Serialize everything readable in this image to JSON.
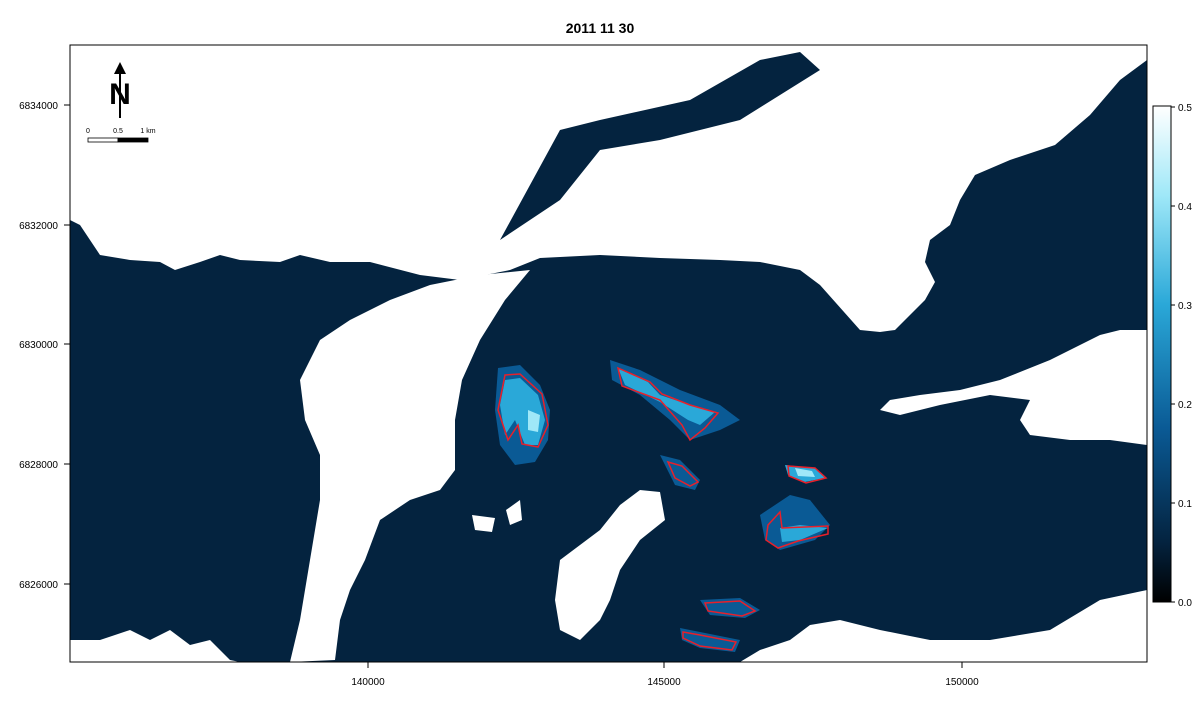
{
  "title": "2011 11 30",
  "map": {
    "x_ticks": [
      "140000",
      "145000",
      "150000"
    ],
    "y_ticks": [
      "6826000",
      "6828000",
      "6830000",
      "6832000",
      "6834000"
    ],
    "colors": {
      "water": "#04233f",
      "land": "#ffffff",
      "contour": "#e8202a",
      "hotspot_mid": "#0a5a95",
      "hotspot_high": "#2aa8d8",
      "hotspot_peak": "#9fe8f8"
    }
  },
  "scale_bar": {
    "labels": [
      "0",
      "0.5",
      "1 km"
    ]
  },
  "north_arrow": {
    "label": "N",
    "icon": "north-arrow-icon"
  },
  "legend": {
    "ticks": [
      "0.0",
      "0.1",
      "0.2",
      "0.3",
      "0.4",
      "0.5"
    ],
    "min": 0.0,
    "max": 0.5,
    "colors": [
      "#000000",
      "#04233f",
      "#0a5a95",
      "#2aa8d8",
      "#9fe8f8",
      "#ffffff"
    ]
  }
}
